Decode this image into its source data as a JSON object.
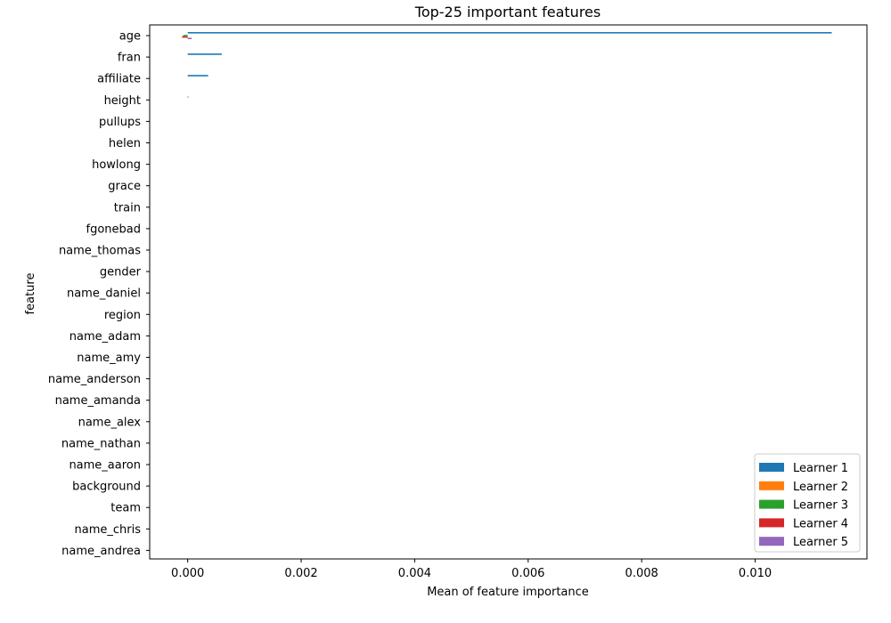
{
  "chart_data": {
    "type": "bar",
    "orientation": "horizontal",
    "title": "Top-25 important features",
    "xlabel": "Mean of feature importance",
    "ylabel": "feature",
    "xlim": [
      -0.00067,
      0.01197
    ],
    "xticks": [
      0.0,
      0.002,
      0.004,
      0.006,
      0.008,
      0.01
    ],
    "xtick_labels": [
      "0.000",
      "0.002",
      "0.004",
      "0.006",
      "0.008",
      "0.010"
    ],
    "grid": false,
    "legend_position": "lower-right",
    "categories": [
      "age",
      "fran",
      "affiliate",
      "height",
      "pullups",
      "helen",
      "howlong",
      "grace",
      "train",
      "fgonebad",
      "name_thomas",
      "gender",
      "name_daniel",
      "region",
      "name_adam",
      "name_amy",
      "name_anderson",
      "name_amanda",
      "name_alex",
      "name_nathan",
      "name_aaron",
      "background",
      "team",
      "name_chris",
      "name_andrea"
    ],
    "series": [
      {
        "name": "Learner 1",
        "color": "#1f77b4",
        "values": [
          0.01135,
          0.0006,
          0.00036,
          1e-05,
          0,
          0,
          0,
          0,
          0,
          0,
          0,
          0,
          0,
          0,
          0,
          0,
          0,
          0,
          0,
          0,
          0,
          0,
          0,
          0,
          0
        ]
      },
      {
        "name": "Learner 2",
        "color": "#ff7f0e",
        "values": [
          0,
          0,
          0,
          0,
          0,
          0,
          0,
          0,
          0,
          0,
          0,
          0,
          0,
          0,
          0,
          0,
          0,
          0,
          0,
          0,
          0,
          0,
          0,
          0,
          0
        ]
      },
      {
        "name": "Learner 3",
        "color": "#2ca02c",
        "values": [
          -8e-05,
          0,
          0,
          0,
          0,
          0,
          0,
          0,
          0,
          0,
          0,
          0,
          0,
          0,
          0,
          0,
          0,
          0,
          0,
          0,
          0,
          0,
          0,
          0,
          0
        ]
      },
      {
        "name": "Learner 4",
        "color": "#d62728",
        "values": [
          -0.0001,
          0,
          0,
          0,
          0,
          0,
          0,
          0,
          0,
          0,
          0,
          0,
          0,
          0,
          0,
          0,
          0,
          0,
          0,
          0,
          0,
          0,
          0,
          0,
          0
        ]
      },
      {
        "name": "Learner 5",
        "color": "#9467bd",
        "values": [
          7e-05,
          0,
          0,
          0,
          0,
          0,
          0,
          0,
          0,
          0,
          0,
          0,
          0,
          0,
          0,
          0,
          0,
          0,
          0,
          0,
          0,
          0,
          0,
          0,
          0
        ]
      }
    ]
  }
}
